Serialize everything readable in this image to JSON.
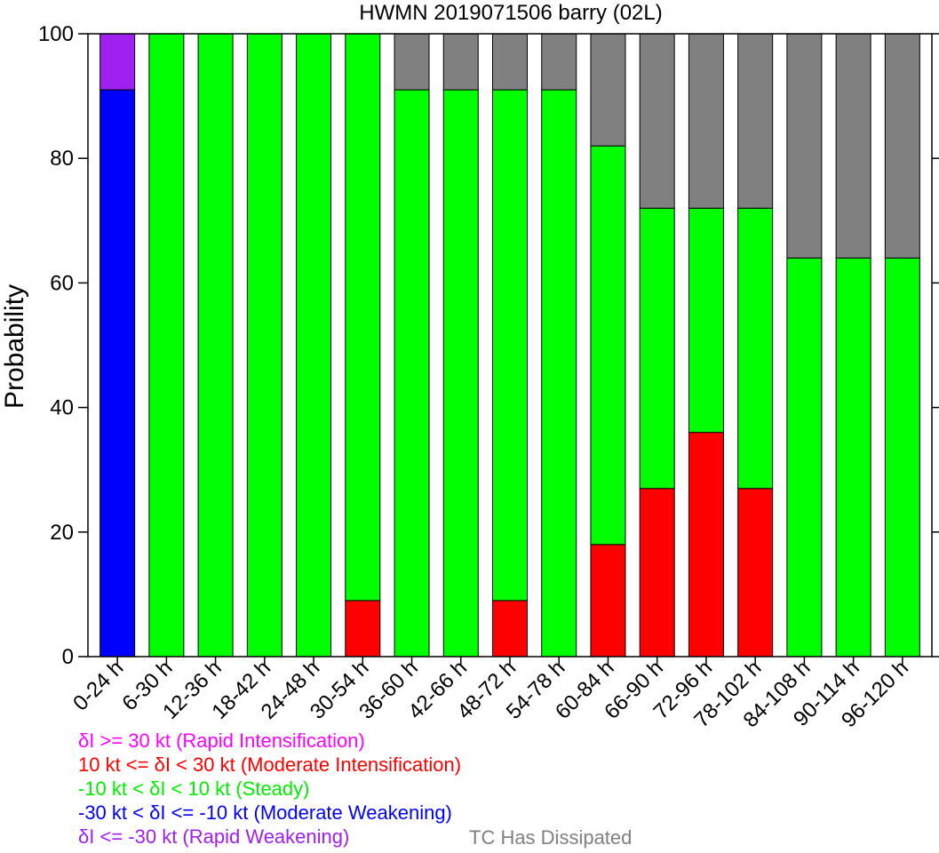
{
  "chart_data": {
    "type": "bar",
    "stacked": true,
    "title": "HWMN 2019071506 barry (02L)",
    "xlabel": "",
    "ylabel": "Probability",
    "ylim": [
      0,
      100
    ],
    "yticks": [
      0,
      20,
      40,
      60,
      80,
      100
    ],
    "grid": false,
    "categories": [
      "0-24 h",
      "6-30 h",
      "12-36 h",
      "18-42 h",
      "24-48 h",
      "30-54 h",
      "36-60 h",
      "42-66 h",
      "48-72 h",
      "54-78 h",
      "60-84 h",
      "66-90 h",
      "72-96 h",
      "78-102 h",
      "84-108 h",
      "90-114 h",
      "96-120 h"
    ],
    "series": [
      {
        "name": "-30 kt < δI <= -10 kt (Moderate Weakening)",
        "color": "#0000ff",
        "values": [
          91,
          0,
          0,
          0,
          0,
          0,
          0,
          0,
          0,
          0,
          0,
          0,
          0,
          0,
          0,
          0,
          0
        ]
      },
      {
        "name": "10 kt <= δI < 30 kt (Moderate Intensification)",
        "color": "#ff0000",
        "values": [
          0,
          0,
          0,
          0,
          0,
          9,
          0,
          0,
          9,
          0,
          18,
          27,
          36,
          27,
          0,
          0,
          0
        ]
      },
      {
        "name": "-10 kt < δI < 10 kt (Steady)",
        "color": "#00ff00",
        "values": [
          0,
          100,
          100,
          100,
          100,
          91,
          91,
          91,
          82,
          91,
          64,
          45,
          36,
          45,
          64,
          64,
          64
        ]
      },
      {
        "name": "δI <= -30 kt (Rapid Weakening)",
        "color": "#a020f0",
        "values": [
          9,
          0,
          0,
          0,
          0,
          0,
          0,
          0,
          0,
          0,
          0,
          0,
          0,
          0,
          0,
          0,
          0
        ]
      },
      {
        "name": "δI >= 30 kt (Rapid Intensification)",
        "color": "#ff00ff",
        "values": [
          0,
          0,
          0,
          0,
          0,
          0,
          0,
          0,
          0,
          0,
          0,
          0,
          0,
          0,
          0,
          0,
          0
        ]
      },
      {
        "name": "TC Has Dissipated",
        "color": "#808080",
        "values": [
          0,
          0,
          0,
          0,
          0,
          0,
          9,
          9,
          9,
          9,
          18,
          28,
          28,
          28,
          36,
          36,
          36
        ]
      }
    ]
  },
  "legend": {
    "rapid_intensification": "δI >= 30 kt (Rapid Intensification)",
    "moderate_intensification": "10 kt <= δI < 30 kt (Moderate Intensification)",
    "steady": "-10 kt < δI < 10 kt (Steady)",
    "moderate_weakening": "-30 kt < δI <= -10 kt (Moderate Weakening)",
    "rapid_weakening": "δI <= -30 kt (Rapid Weakening)",
    "dissipated": "TC Has Dissipated"
  },
  "colors": {
    "rapid_intensification": "#ff00ff",
    "moderate_intensification": "#ff0000",
    "steady": "#00ff00",
    "moderate_weakening": "#0000ff",
    "rapid_weakening": "#a020f0",
    "dissipated": "#808080"
  }
}
